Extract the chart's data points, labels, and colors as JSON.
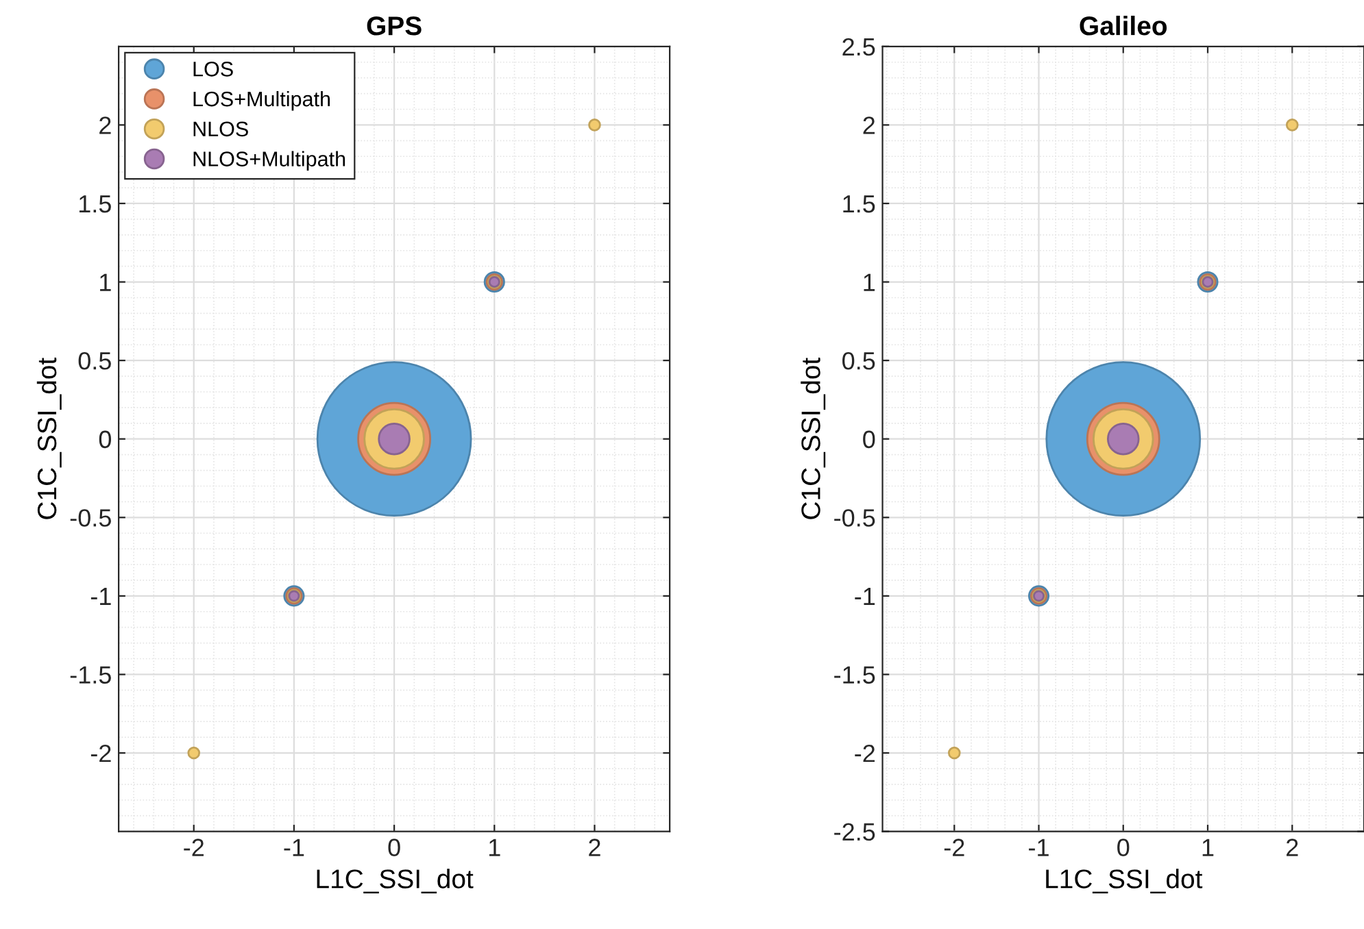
{
  "chart_data": [
    {
      "type": "bubble",
      "title": "GPS",
      "xlabel": "L1C_SSI_dot",
      "ylabel": "C1C_SSI_dot",
      "x": [
        -2,
        -1,
        0,
        1,
        2
      ],
      "xlim": [
        -2.75,
        2.75
      ],
      "ylim": [
        -2.5,
        2.5
      ],
      "xticks": [
        -2,
        -1,
        0,
        1,
        2
      ],
      "yticks": [
        -2,
        -1.5,
        -1,
        -0.5,
        0,
        0.5,
        1,
        1.5,
        2
      ],
      "grid": true,
      "legend": "top left",
      "series": [
        {
          "name": "LOS",
          "color": "#5fa5d7",
          "values": [
            null,
            -1,
            0,
            1,
            null
          ],
          "sizes": [
            null,
            0.016,
            1,
            0.016,
            null
          ]
        },
        {
          "name": "LOS+Multipath",
          "color": "#e8916a",
          "values": [
            null,
            -1,
            0,
            1,
            null
          ],
          "sizes": [
            null,
            0.01,
            0.22,
            0.01,
            null
          ]
        },
        {
          "name": "NLOS",
          "color": "#f2cb6e",
          "values": [
            -2,
            -1,
            0,
            1,
            2
          ],
          "sizes": [
            0.005,
            0.006,
            0.15,
            0.006,
            0.005
          ]
        },
        {
          "name": "NLOS+Multipath",
          "color": "#a97cb3",
          "values": [
            null,
            -1,
            0,
            1,
            null
          ],
          "sizes": [
            null,
            0.004,
            0.04,
            0.004,
            null
          ]
        }
      ]
    },
    {
      "type": "bubble",
      "title": "Galileo",
      "xlabel": "L1C_SSI_dot",
      "ylabel": "C1C_SSI_dot",
      "x": [
        -2,
        -1,
        0,
        1,
        2
      ],
      "xlim": [
        -2.85,
        2.85
      ],
      "ylim": [
        -2.5,
        2.5
      ],
      "xticks": [
        -2,
        -1,
        0,
        1,
        2
      ],
      "yticks": [
        -2.5,
        -2,
        -1.5,
        -1,
        -0.5,
        0,
        0.5,
        1,
        1.5,
        2,
        2.5
      ],
      "grid": true,
      "series": [
        {
          "color": "#5fa5d7",
          "values": [
            null,
            -1,
            0,
            1,
            null
          ],
          "sizes": [
            null,
            0.016,
            1,
            0.016,
            null
          ]
        },
        {
          "color": "#e8916a",
          "values": [
            null,
            -1,
            0,
            1,
            null
          ],
          "sizes": [
            null,
            0.01,
            0.22,
            0.01,
            null
          ]
        },
        {
          "color": "#f2cb6e",
          "values": [
            -2,
            -1,
            0,
            1,
            2
          ],
          "sizes": [
            0.005,
            0.006,
            0.15,
            0.006,
            0.005
          ]
        },
        {
          "color": "#a97cb3",
          "values": [
            null,
            -1,
            0,
            1,
            null
          ],
          "sizes": [
            null,
            0.004,
            0.04,
            0.004,
            null
          ]
        }
      ]
    }
  ]
}
